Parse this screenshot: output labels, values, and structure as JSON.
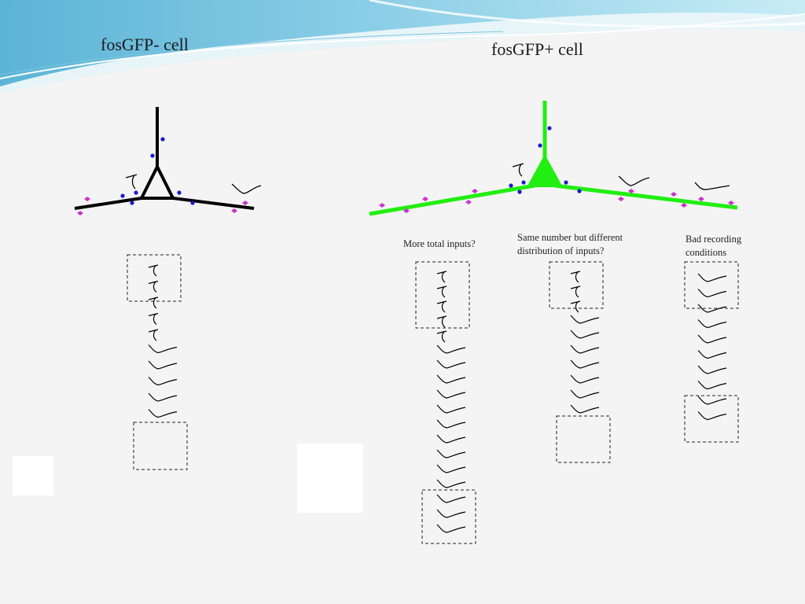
{
  "titles": {
    "left_cell": "fosGFP- cell",
    "right_cell": "fosGFP+ cell"
  },
  "hypotheses": {
    "more_inputs": "More total inputs?",
    "distribution": "Same number but different distribution of inputs?",
    "bad_recording": "Bad recording conditions"
  },
  "colors": {
    "neg_neuron": "#000000",
    "pos_neuron": "#22ee11",
    "input_dot": "#1a1acc",
    "spine_diamond": "#cc33cc",
    "header_wave_1": "#6ec3e0",
    "header_wave_2": "#bfe8f3"
  },
  "columns": {
    "neg": [
      "fast",
      "fast",
      "fast",
      "fast",
      "fast",
      "slow",
      "slow",
      "slow",
      "slow",
      "slow"
    ],
    "more_inputs": [
      "fast",
      "fast",
      "fast",
      "fast",
      "fast",
      "slow",
      "slow",
      "slow",
      "slow",
      "slow",
      "slow",
      "slow",
      "slow",
      "slow",
      "slow",
      "slow",
      "slow",
      "slow"
    ],
    "distribution": [
      "fast",
      "fast",
      "fast",
      "slow",
      "slow",
      "slow",
      "slow",
      "slow",
      "slow",
      "slow"
    ],
    "bad_recording": [
      "slow",
      "slow",
      "slow",
      "slow",
      "slow",
      "slow",
      "slow",
      "slow",
      "slow",
      "slow"
    ]
  }
}
